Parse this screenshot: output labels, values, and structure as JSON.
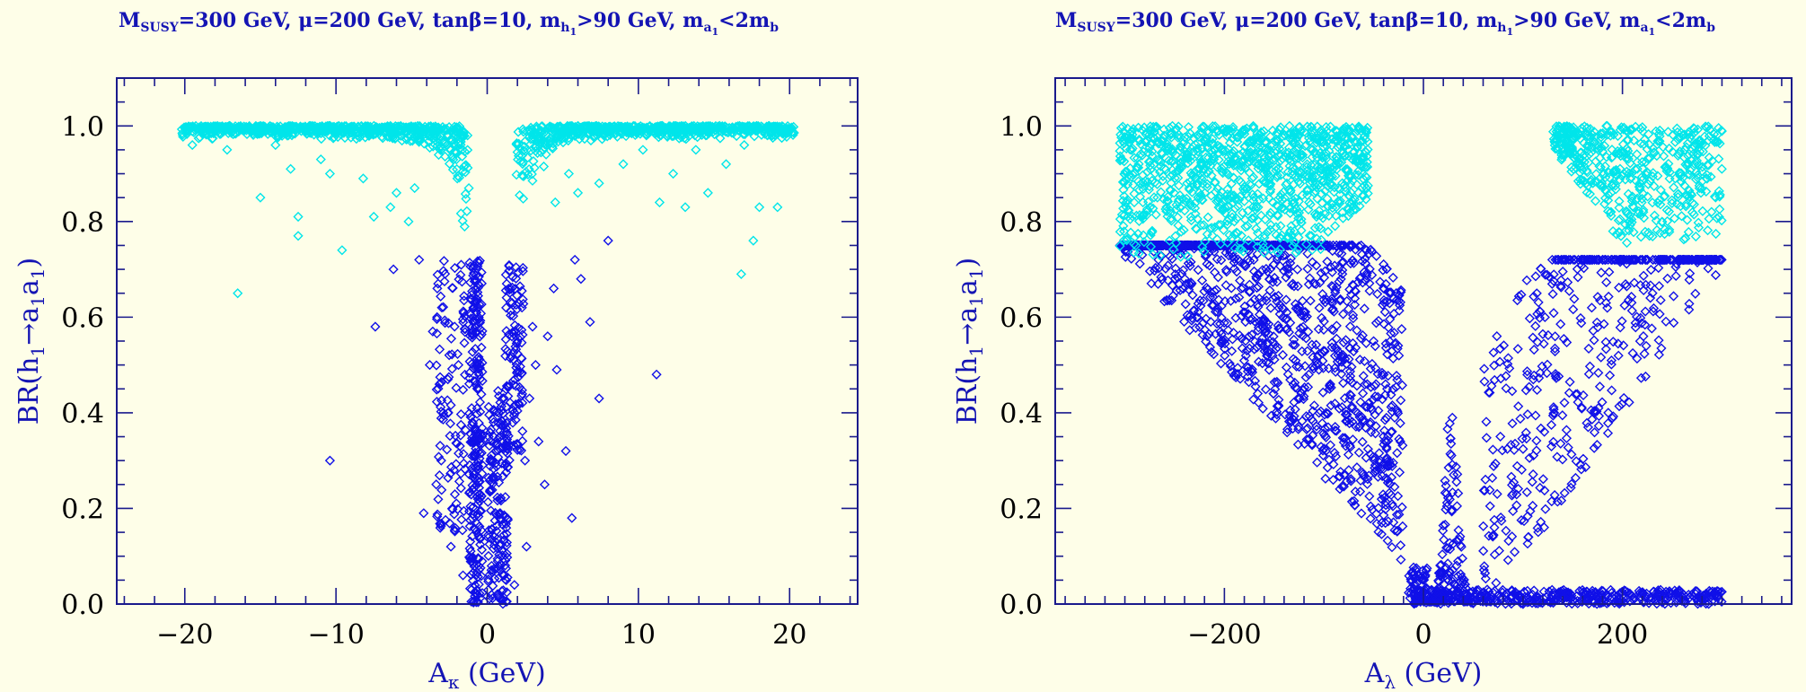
{
  "colors": {
    "background": "#fefee8",
    "frame": "#1a1a8c",
    "marker_below": "#1010e8",
    "marker_above": "#00e5ea",
    "title_text": "#1414b4"
  },
  "chart_data": [
    {
      "type": "scatter",
      "title": {
        "prefix": "M",
        "prefix_sub": "SUSY",
        "rest": "=300 GeV, μ=200 GeV, tanβ=10, m",
        "h_sub": "h",
        "h_subsub": "1",
        "mid": ">90 GeV, m",
        "a_sub": "a",
        "a_subsub": "1",
        "tail": "<2m",
        "tail_sub": "b"
      },
      "xlabel": {
        "main": "A",
        "sub": "κ",
        "tail": " (GeV)"
      },
      "ylabel": {
        "pre": "BR(h",
        "s1": "1",
        "arrow": "→a",
        "s2": "1",
        "a2": "a",
        "s3": "1",
        "close": ")"
      },
      "xlim": [
        -24.5,
        24.5
      ],
      "ylim": [
        0,
        1.1
      ],
      "xticks": [
        -20,
        -10,
        0,
        10,
        20
      ],
      "xtick_labels": [
        "−20",
        "−10",
        "0",
        "10",
        "20"
      ],
      "yticks": [
        0.0,
        0.2,
        0.4,
        0.6,
        0.8,
        1.0
      ],
      "ytick_labels": [
        "0.0",
        "0.2",
        "0.4",
        "0.6",
        "0.8",
        "1.0"
      ],
      "grid": false,
      "marker": "diamond",
      "series": [
        {
          "color": "#1010e8",
          "bands": [
            {
              "x": [
                -1.2,
                -0.3
              ],
              "y": [
                0.0,
                0.72
              ],
              "n": 260
            },
            {
              "x": [
                0.05,
                1.4
              ],
              "y": [
                0.0,
                0.45
              ],
              "n": 180
            },
            {
              "x": [
                1.2,
                2.4
              ],
              "y": [
                0.3,
                0.72
              ],
              "n": 110
            },
            {
              "x": [
                -3.4,
                -1.4
              ],
              "y": [
                0.15,
                0.72
              ],
              "n": 110
            }
          ],
          "points": [
            [
              -10.4,
              0.3
            ],
            [
              -6.2,
              0.7
            ],
            [
              -7.4,
              0.58
            ],
            [
              -4.2,
              0.19
            ],
            [
              -3.8,
              0.5
            ],
            [
              -3.6,
              0.57
            ],
            [
              -3.3,
              0.66
            ],
            [
              -4.5,
              0.72
            ],
            [
              -2.4,
              0.12
            ],
            [
              -2.6,
              0.47
            ],
            [
              -2.2,
              0.28
            ],
            [
              2.8,
              0.43
            ],
            [
              3.2,
              0.5
            ],
            [
              2.3,
              0.62
            ],
            [
              3.8,
              0.25
            ],
            [
              4.6,
              0.49
            ],
            [
              5.2,
              0.32
            ],
            [
              5.6,
              0.18
            ],
            [
              6.8,
              0.59
            ],
            [
              7.4,
              0.43
            ],
            [
              11.2,
              0.48
            ],
            [
              8.0,
              0.76
            ],
            [
              2.6,
              0.12
            ],
            [
              4.0,
              0.56
            ],
            [
              3.4,
              0.34
            ],
            [
              1.8,
              0.04
            ],
            [
              -1.6,
              0.06
            ],
            [
              4.4,
              0.66
            ],
            [
              -2.9,
              0.4
            ],
            [
              6.2,
              0.68
            ],
            [
              3.0,
              0.58
            ],
            [
              2.5,
              0.3
            ],
            [
              -3.0,
              0.62
            ],
            [
              -1.9,
              0.5
            ],
            [
              5.8,
              0.72
            ]
          ]
        },
        {
          "color": "#00e5ea",
          "bands": [
            {
              "shape": "upper-envelope",
              "x": [
                -20.2,
                -1.2
              ],
              "y_top": 1.0,
              "n": 700
            },
            {
              "shape": "upper-envelope",
              "x": [
                1.9,
                20.3
              ],
              "y_top": 1.0,
              "n": 700
            }
          ],
          "points": [
            [
              -16.5,
              0.65
            ],
            [
              -15.0,
              0.85
            ],
            [
              -12.5,
              0.81
            ],
            [
              -12.5,
              0.77
            ],
            [
              -13.0,
              0.91
            ],
            [
              -11.0,
              0.93
            ],
            [
              -9.6,
              0.74
            ],
            [
              -7.5,
              0.81
            ],
            [
              -6.4,
              0.83
            ],
            [
              -6.0,
              0.86
            ],
            [
              -8.2,
              0.89
            ],
            [
              -10.4,
              0.9
            ],
            [
              -17.2,
              0.95
            ],
            [
              -19.5,
              0.96
            ],
            [
              -14.0,
              0.96
            ],
            [
              -4.8,
              0.87
            ],
            [
              -5.2,
              0.8
            ],
            [
              11.4,
              0.84
            ],
            [
              12.3,
              0.9
            ],
            [
              13.1,
              0.83
            ],
            [
              14.6,
              0.86
            ],
            [
              16.8,
              0.69
            ],
            [
              17.6,
              0.76
            ],
            [
              18.0,
              0.83
            ],
            [
              19.2,
              0.83
            ],
            [
              15.8,
              0.92
            ],
            [
              9.0,
              0.92
            ],
            [
              7.4,
              0.88
            ],
            [
              6.0,
              0.86
            ],
            [
              10.3,
              0.95
            ],
            [
              5.4,
              0.9
            ],
            [
              4.5,
              0.84
            ],
            [
              17.0,
              0.96
            ],
            [
              13.8,
              0.95
            ]
          ]
        }
      ]
    },
    {
      "type": "scatter",
      "title": {
        "prefix": "M",
        "prefix_sub": "SUSY",
        "rest": "=300 GeV, μ=200 GeV, tanβ=10, m",
        "h_sub": "h",
        "h_subsub": "1",
        "mid": ">90 GeV, m",
        "a_sub": "a",
        "a_subsub": "1",
        "tail": "<2m",
        "tail_sub": "b"
      },
      "xlabel": {
        "main": "A",
        "sub": "λ",
        "tail": " (GeV)"
      },
      "ylabel": {
        "pre": "BR(h",
        "s1": "1",
        "arrow": "→a",
        "s2": "1",
        "a2": "a",
        "s3": "1",
        "close": ")"
      },
      "xlim": [
        -370,
        370
      ],
      "ylim": [
        0,
        1.1
      ],
      "xticks": [
        -200,
        0,
        200
      ],
      "xtick_labels": [
        "−200",
        "0",
        "200"
      ],
      "yticks": [
        0.0,
        0.2,
        0.4,
        0.6,
        0.8,
        1.0
      ],
      "ytick_labels": [
        "0.0",
        "0.2",
        "0.4",
        "0.6",
        "0.8",
        "1.0"
      ],
      "grid": false,
      "marker": "diamond",
      "series": [
        {
          "color": "#1010e8",
          "bands": [
            {
              "shape": "diagonal-streaks",
              "x": [
                -305,
                -20
              ],
              "y": [
                0.0,
                0.75
              ],
              "n": 1500
            },
            {
              "shape": "spike",
              "x": [
                5,
                45
              ],
              "y": [
                0.0,
                0.43
              ],
              "n": 160
            },
            {
              "x": [
                -10,
                300
              ],
              "y": [
                0.0,
                0.03
              ],
              "n": 420
            },
            {
              "shape": "diagonal-streaks-right",
              "x": [
                60,
                300
              ],
              "y": [
                0.02,
                0.72
              ],
              "n": 520
            },
            {
              "x": [
                -15,
                5
              ],
              "y": [
                0.0,
                0.08
              ],
              "n": 50
            }
          ],
          "points": []
        },
        {
          "color": "#00e5ea",
          "bands": [
            {
              "shape": "top-block-left",
              "x": [
                -305,
                -55
              ],
              "y": [
                0.72,
                1.0
              ],
              "n": 1100
            },
            {
              "shape": "top-block-right",
              "x": [
                130,
                300
              ],
              "y": [
                0.75,
                1.0
              ],
              "n": 520
            }
          ],
          "points": []
        }
      ]
    }
  ]
}
